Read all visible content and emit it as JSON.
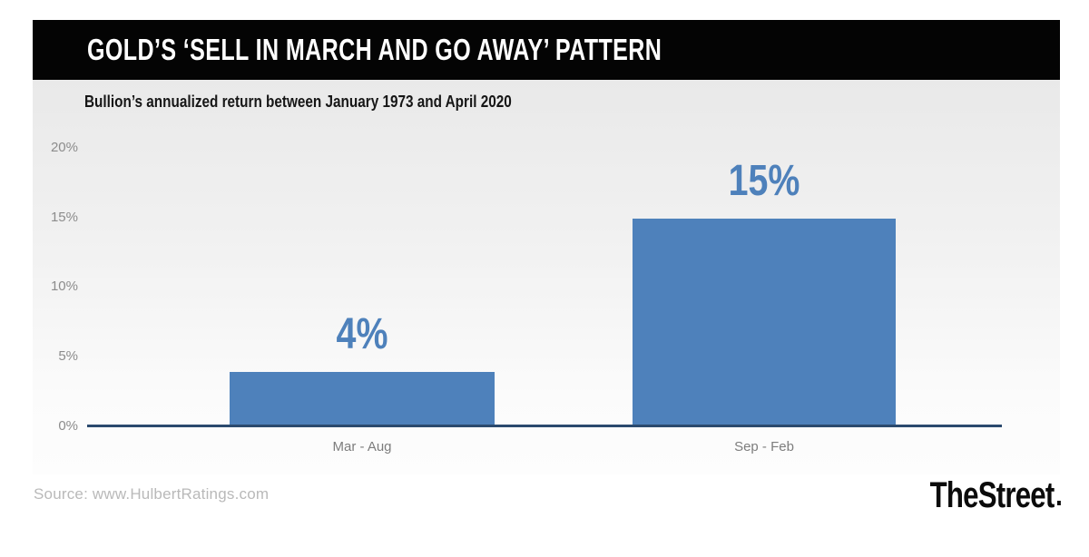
{
  "header": {
    "title": "GOLD’S ‘SELL IN MARCH AND GO AWAY’ PATTERN"
  },
  "chart_data": {
    "type": "bar",
    "title": "GOLD’S ‘SELL IN MARCH AND GO AWAY’ PATTERN",
    "subtitle": "Bullion’s annualized return between January 1973 and April 2020",
    "categories": [
      "Mar - Aug",
      "Sep - Feb"
    ],
    "values": [
      4,
      15
    ],
    "value_labels": [
      "4%",
      "15%"
    ],
    "y_ticks": [
      "0%",
      "5%",
      "10%",
      "15%",
      "20%"
    ],
    "ylim": [
      0,
      20
    ],
    "xlabel": "",
    "ylabel": "",
    "grid": false,
    "legend": "none",
    "bar_color": "#4e81bb",
    "value_label_color": "#4e81bb",
    "axis_line_color": "#2b4a6e",
    "tick_label_color": "#8c8c8c",
    "category_label_color": "#7d7d7d"
  },
  "footer": {
    "source": "Source: www.HulbertRatings.com",
    "brand": "TheStreet"
  }
}
